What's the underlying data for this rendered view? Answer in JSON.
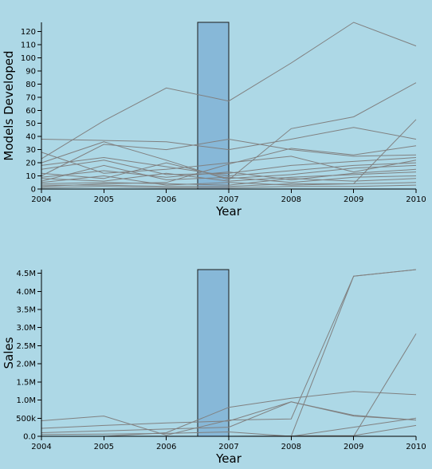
{
  "chart_data": [
    {
      "type": "line",
      "xlabel": "Year",
      "ylabel": "Models Developed",
      "x": [
        2004,
        2005,
        2006,
        2007,
        2008,
        2009,
        2010
      ],
      "x_ticks": [
        "2004",
        "2005",
        "2006",
        "2007",
        "2008",
        "2009",
        "2010"
      ],
      "xlim": [
        2004,
        2010
      ],
      "ylim": [
        0,
        127
      ],
      "y_ticks": [
        0,
        10,
        20,
        30,
        40,
        50,
        60,
        70,
        80,
        90,
        100,
        110,
        120
      ],
      "y_tick_labels": [
        "0",
        "10",
        "20",
        "30",
        "40",
        "50",
        "60",
        "70",
        "80",
        "90",
        "100",
        "110",
        "120"
      ],
      "highlight_bar": {
        "x": 2007,
        "value": 127
      },
      "series": [
        {
          "values": [
            23,
            52,
            77,
            67,
            96,
            127,
            109
          ]
        },
        {
          "values": [
            20,
            36,
            22,
            7,
            46,
            55,
            81
          ]
        },
        {
          "values": [
            38,
            37,
            36,
            30,
            38,
            47,
            38
          ]
        },
        {
          "values": [
            5,
            10,
            3,
            5,
            3,
            4,
            53
          ]
        },
        {
          "values": [
            2,
            4,
            5,
            19,
            31,
            26,
            33
          ]
        },
        {
          "values": [
            10,
            34,
            30,
            38,
            30,
            25,
            26
          ]
        },
        {
          "values": [
            28,
            12,
            15,
            20,
            25,
            13,
            22
          ]
        },
        {
          "values": [
            15,
            22,
            11,
            12,
            18,
            21,
            24
          ]
        },
        {
          "values": [
            18,
            24,
            17,
            10,
            14,
            18,
            20
          ]
        },
        {
          "values": [
            12,
            8,
            20,
            8,
            11,
            16,
            18
          ]
        },
        {
          "values": [
            9,
            14,
            9,
            13,
            7,
            12,
            15
          ]
        },
        {
          "values": [
            8,
            6,
            12,
            6,
            9,
            11,
            13
          ]
        },
        {
          "values": [
            6,
            18,
            7,
            9,
            5,
            9,
            10
          ]
        },
        {
          "values": [
            4,
            5,
            4,
            3,
            8,
            6,
            8
          ]
        },
        {
          "values": [
            3,
            3,
            2,
            2,
            4,
            4,
            5
          ]
        },
        {
          "values": [
            1,
            2,
            1,
            1,
            2,
            2,
            3
          ]
        }
      ]
    },
    {
      "type": "line",
      "xlabel": "Year",
      "ylabel": "Sales",
      "x": [
        2004,
        2005,
        2006,
        2007,
        2008,
        2009,
        2010
      ],
      "x_ticks": [
        "2004",
        "2005",
        "2006",
        "2007",
        "2008",
        "2009",
        "2010"
      ],
      "xlim": [
        2004,
        2010
      ],
      "ylim": [
        0,
        4600000
      ],
      "y_ticks": [
        0,
        500000,
        1000000,
        1500000,
        2000000,
        2500000,
        3000000,
        3500000,
        4000000,
        4500000
      ],
      "y_tick_labels": [
        "0.0",
        "500k",
        "1.0M",
        "1.5M",
        "2.0M",
        "2.5M",
        "3.0M",
        "3.5M",
        "4.0M",
        "4.5M"
      ],
      "highlight_bar": {
        "x": 2007,
        "value": 4600000
      },
      "series": [
        {
          "values": [
            0,
            0,
            0,
            0,
            0,
            4420000,
            4600000
          ]
        },
        {
          "values": [
            0,
            0,
            0,
            0,
            0,
            0,
            2830000
          ]
        },
        {
          "values": [
            0,
            0,
            100000,
            800000,
            1050000,
            1240000,
            1150000
          ]
        },
        {
          "values": [
            430000,
            560000,
            30000,
            450000,
            480000,
            4420000,
            4600000
          ]
        },
        {
          "values": [
            220000,
            300000,
            370000,
            420000,
            950000,
            580000,
            450000
          ]
        },
        {
          "values": [
            100000,
            150000,
            200000,
            250000,
            950000,
            560000,
            450000
          ]
        },
        {
          "values": [
            50000,
            60000,
            80000,
            120000,
            0,
            250000,
            500000
          ]
        },
        {
          "values": [
            0,
            0,
            0,
            0,
            10000,
            20000,
            300000
          ]
        }
      ]
    }
  ]
}
